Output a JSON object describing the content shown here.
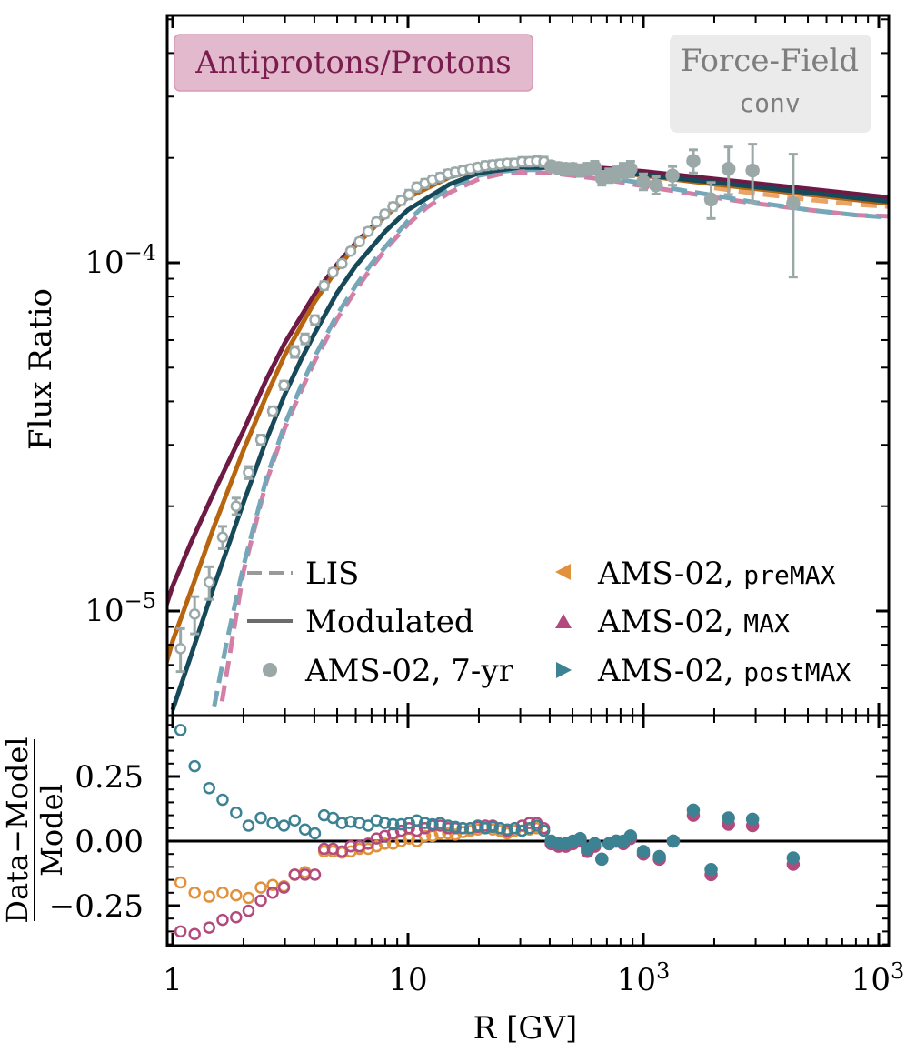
{
  "chart_data": [
    {
      "type": "line",
      "panel": "main",
      "ylabel": "Flux Ratio",
      "y_scale": "log",
      "x_scale": "log",
      "xlim": [
        0.9,
        1100
      ],
      "ylim": [
        5.2e-06,
        0.00045
      ],
      "ytick_labels": [
        "10⁻⁵",
        "10⁻⁴"
      ],
      "species_label": "Antiprotons/Protons",
      "model_label": "Force-Field",
      "model_sublabel": "conv",
      "legend_left": [
        {
          "key": "lis",
          "text": "LIS",
          "style": "dashed",
          "color": "#999999"
        },
        {
          "key": "mod",
          "text": "Modulated",
          "style": "solid",
          "color": "#6b6b6b"
        },
        {
          "key": "data7",
          "text": "AMS-02, 7-yr",
          "style": "circle",
          "color": "#9aa9a8"
        }
      ],
      "legend_right": [
        {
          "key": "pre",
          "text": "AMS-02, ",
          "code": "preMAX",
          "marker": "triangle-left",
          "color": "#e0913a"
        },
        {
          "key": "max",
          "text": "AMS-02, ",
          "code": "MAX",
          "marker": "triangle-up",
          "color": "#b34a7d"
        },
        {
          "key": "post",
          "text": "AMS-02, ",
          "code": "postMAX",
          "marker": "triangle-right",
          "color": "#3c8292"
        }
      ],
      "colors": {
        "lis_pink": "#d47fa6",
        "lis_teal": "#76a7b8",
        "lis_orange": "#e8a567",
        "mod_maroon": "#6e1a45",
        "mod_orange": "#b86510",
        "mod_teal": "#164a5a",
        "data": "#9aa9a8"
      },
      "series": [
        {
          "key": "lis_pink",
          "style": "dashed",
          "x": [
            1.62,
            2,
            2.5,
            3,
            3.5,
            4,
            5,
            6,
            7,
            8,
            10,
            12,
            15,
            20,
            25,
            30,
            40,
            50,
            70,
            100,
            150,
            200,
            300,
            500,
            800,
            1100
          ],
          "y": [
            5.5e-06,
            1.3e-05,
            2.35e-05,
            3.36e-05,
            4.26e-05,
            5.2e-05,
            6.9e-05,
            8.35e-05,
            9.7e-05,
            0.000109,
            0.000129,
            0.000144,
            0.000159,
            0.000174,
            0.00018,
            0.000182,
            0.000181,
            0.000178,
            0.000173,
            0.000166,
            0.000159,
            0.000154,
            0.000148,
            0.000142,
            0.000137,
            0.000136
          ]
        },
        {
          "key": "lis_teal",
          "style": "dashed",
          "x": [
            1.5,
            1.7,
            2,
            2.5,
            3,
            3.5,
            4,
            5,
            6,
            7,
            8,
            10,
            12,
            15,
            20,
            25,
            30,
            40,
            50,
            70,
            100,
            150,
            200,
            300,
            500,
            800,
            1100
          ],
          "y": [
            5.3e-06,
            8.2e-06,
            1.35e-05,
            2.4e-05,
            3.45e-05,
            4.4e-05,
            5.35e-05,
            7.1e-05,
            8.6e-05,
            9.95e-05,
            0.000111,
            0.000132,
            0.000148,
            0.000164,
            0.000178,
            0.000183,
            0.000185,
            0.000185,
            0.000182,
            0.000176,
            0.000169,
            0.000161,
            0.000156,
            0.000149,
            0.000142,
            0.000137,
            0.000135
          ]
        },
        {
          "key": "lis_orange",
          "style": "dashed",
          "x": [
            200,
            300,
            500,
            800,
            1100
          ],
          "y": [
            0.000164,
            0.000158,
            0.000152,
            0.000147,
            0.000145
          ]
        },
        {
          "key": "mod_maroon",
          "style": "solid",
          "x": [
            0.9,
            1,
            1.2,
            1.5,
            2,
            2.5,
            3,
            4,
            5,
            6,
            8,
            10,
            15,
            20,
            30,
            50,
            100,
            200,
            500,
            1100
          ],
          "y": [
            9.5e-06,
            1.18e-05,
            1.58e-05,
            2.2e-05,
            3.3e-05,
            4.62e-05,
            5.9e-05,
            8.1e-05,
            9.9e-05,
            0.000114,
            0.000138,
            0.000156,
            0.000178,
            0.000187,
            0.000191,
            0.00019,
            0.000183,
            0.000174,
            0.000163,
            0.000154
          ]
        },
        {
          "key": "mod_orange",
          "style": "solid",
          "x": [
            0.9,
            1,
            1.2,
            1.5,
            2,
            2.5,
            3,
            4,
            5,
            6,
            8,
            10,
            15,
            20,
            30,
            50,
            100,
            200,
            500,
            1100
          ],
          "y": [
            6.4e-06,
            8.2e-06,
            1.15e-05,
            1.75e-05,
            2.9e-05,
            4.15e-05,
            5.45e-05,
            7.7e-05,
            9.6e-05,
            0.000112,
            0.000136,
            0.000154,
            0.000176,
            0.000185,
            0.000189,
            0.000187,
            0.000178,
            0.000168,
            0.000157,
            0.000148
          ]
        },
        {
          "key": "mod_teal",
          "style": "solid",
          "x": [
            1,
            1.2,
            1.5,
            2,
            2.5,
            3,
            3.5,
            4,
            5,
            6,
            8,
            10,
            15,
            20,
            30,
            50,
            100,
            200,
            500,
            1100
          ],
          "y": [
            5.2e-06,
            7.5e-06,
            1.18e-05,
            2.05e-05,
            3.1e-05,
            4.2e-05,
            5.25e-05,
            6.25e-05,
            8.2e-05,
            9.8e-05,
            0.000123,
            0.000142,
            0.000168,
            0.000181,
            0.000188,
            0.000187,
            0.000179,
            0.00017,
            0.000159,
            0.00015
          ]
        }
      ],
      "data_points": {
        "x": [
          1.08,
          1.24,
          1.43,
          1.63,
          1.86,
          2.1,
          2.37,
          2.66,
          2.97,
          3.3,
          3.65,
          4.02,
          4.4,
          4.8,
          5.24,
          5.71,
          6.22,
          6.77,
          7.35,
          7.97,
          8.64,
          9.35,
          10.1,
          10.9,
          11.8,
          12.7,
          13.7,
          14.8,
          15.9,
          17.1,
          18.4,
          19.8,
          21.3,
          22.9,
          24.6,
          26.4,
          28.4,
          30.5,
          32.8,
          35.2,
          37.8,
          40.6,
          43.6,
          46.8,
          50.2,
          53.9,
          57.8,
          62.1,
          66.6,
          71.5,
          76.7,
          82.2,
          88.2,
          100,
          113,
          133,
          163,
          194,
          230,
          291,
          433
        ],
        "y": [
          7.8e-06,
          9.8e-06,
          1.21e-05,
          1.63e-05,
          2e-05,
          2.5e-05,
          3.1e-05,
          3.75e-05,
          4.45e-05,
          5.55e-05,
          6.05e-05,
          6.85e-05,
          8.6e-05,
          9.4e-05,
          9.95e-05,
          0.000108,
          0.000115,
          0.000123,
          0.000131,
          0.000138,
          0.000145,
          0.000151,
          0.000157,
          0.000165,
          0.000169,
          0.000173,
          0.000176,
          0.00018,
          0.000182,
          0.000184,
          0.000186,
          0.000188,
          0.00019,
          0.000191,
          0.000192,
          0.000193,
          0.000193,
          0.000195,
          0.000195,
          0.000196,
          0.000195,
          0.000189,
          0.000187,
          0.000186,
          0.000186,
          0.000184,
          0.000186,
          0.000188,
          0.000175,
          0.000178,
          0.00018,
          0.000184,
          0.000186,
          0.000171,
          0.000167,
          0.000178,
          0.000196,
          0.000152,
          0.000186,
          0.000184,
          0.000148
        ],
        "err": [
          1.1e-06,
          1.2e-06,
          1.3e-06,
          1.2e-06,
          1.1e-06,
          1e-06,
          1e-06,
          1.1e-06,
          1.2e-06,
          2e-06,
          2e-06,
          2e-06,
          2.2e-06,
          2e-06,
          2e-06,
          2e-06,
          2.2e-06,
          2.5e-06,
          3e-06,
          3e-06,
          3.5e-06,
          4e-06,
          4.5e-06,
          4.5e-06,
          4.5e-06,
          4.5e-06,
          4.5e-06,
          4.5e-06,
          4.5e-06,
          4.5e-06,
          4.5e-06,
          4.5e-06,
          5e-06,
          5e-06,
          5e-06,
          5e-06,
          5.5e-06,
          5.5e-06,
          5.5e-06,
          6e-06,
          6e-06,
          6e-06,
          6.5e-06,
          6.5e-06,
          6.5e-06,
          7e-06,
          7e-06,
          7.5e-06,
          8e-06,
          8e-06,
          8.5e-06,
          9e-06,
          9.5e-06,
          9e-06,
          9.5e-06,
          1.1e-05,
          1.5e-05,
          1.8e-05,
          2.9e-05,
          3.5e-05,
          5.7e-05
        ]
      }
    },
    {
      "type": "scatter",
      "panel": "residual",
      "xlabel": "R [GV]",
      "ylabel_num": "Data−Model",
      "ylabel_den": "Model",
      "x_scale": "log",
      "xlim": [
        0.9,
        1100
      ],
      "ylim": [
        -0.41,
        0.48
      ],
      "yticks": [
        -0.25,
        0,
        0.25
      ],
      "ytick_labels": [
        "−0.25",
        "0.00",
        "0.25"
      ],
      "xtick_values": [
        1,
        10,
        100,
        1000
      ],
      "xtick_labels": [
        "1",
        "10",
        "100",
        "10³"
      ],
      "series": [
        {
          "key": "pre",
          "color": "#e0913a",
          "filled": false,
          "x": [
            1.08,
            1.24,
            1.43,
            1.63,
            1.86,
            2.1,
            2.37,
            2.66,
            2.97,
            3.3,
            3.65,
            4.4,
            4.8,
            5.24,
            5.71,
            6.22,
            6.77,
            7.35,
            7.97,
            8.64,
            9.35,
            10.1,
            10.9,
            11.8,
            12.7,
            13.7,
            14.8,
            15.9,
            17.1,
            18.4,
            19.8,
            21.3,
            22.9,
            24.6,
            26.4,
            28.4,
            30.5,
            32.8,
            35.2,
            37.8
          ],
          "y": [
            -0.16,
            -0.2,
            -0.215,
            -0.2,
            -0.21,
            -0.22,
            -0.18,
            -0.17,
            -0.175,
            -0.13,
            -0.12,
            -0.04,
            -0.04,
            -0.045,
            -0.04,
            -0.03,
            -0.03,
            -0.02,
            -0.01,
            -0.01,
            0,
            0.01,
            0,
            0.02,
            0.02,
            0.03,
            0.03,
            0.025,
            0.035,
            0.04,
            0.045,
            0.05,
            0.045,
            0.04,
            0.03,
            0.04,
            0.04,
            0.045,
            0.05,
            0.04
          ]
        },
        {
          "key": "max",
          "color": "#b34a7d",
          "filled": false,
          "x": [
            1.08,
            1.24,
            1.43,
            1.63,
            1.86,
            2.1,
            2.37,
            2.66,
            2.97,
            3.3,
            3.65,
            4.02,
            4.4,
            4.8,
            5.24,
            5.71,
            6.22,
            6.77,
            7.35,
            7.97,
            8.64,
            9.35,
            10.1,
            10.9,
            11.8,
            12.7,
            13.7,
            14.8,
            15.9,
            17.1,
            18.4,
            19.8,
            21.3,
            22.9,
            24.6,
            26.4,
            28.4,
            30.5,
            32.8,
            35.2,
            37.8
          ],
          "y": [
            -0.35,
            -0.36,
            -0.335,
            -0.305,
            -0.295,
            -0.27,
            -0.23,
            -0.2,
            -0.18,
            -0.13,
            -0.13,
            -0.13,
            -0.03,
            -0.03,
            -0.04,
            -0.02,
            -0.02,
            -0.01,
            0.01,
            0.02,
            0.03,
            0.04,
            0.05,
            0.04,
            0.05,
            0.06,
            0.06,
            0.05,
            0.05,
            0.05,
            0.05,
            0.055,
            0.06,
            0.06,
            0.05,
            0.04,
            0.05,
            0.06,
            0.07,
            0.07,
            0.05
          ]
        },
        {
          "key": "post",
          "color": "#3c8292",
          "filled": false,
          "x": [
            1.08,
            1.24,
            1.43,
            1.63,
            1.86,
            2.1,
            2.37,
            2.66,
            2.97,
            3.3,
            3.65,
            4.02,
            4.4,
            4.8,
            5.24,
            5.71,
            6.22,
            6.77,
            7.35,
            7.97,
            8.64,
            9.35,
            10.1,
            10.9,
            11.8,
            12.7,
            13.7,
            14.8,
            15.9,
            17.1,
            18.4,
            19.8,
            21.3,
            22.9,
            24.6,
            26.4,
            28.4,
            30.5,
            32.8,
            35.2,
            37.8
          ],
          "y": [
            0.43,
            0.29,
            0.205,
            0.16,
            0.11,
            0.06,
            0.09,
            0.07,
            0.06,
            0.08,
            0.045,
            0.03,
            0.1,
            0.09,
            0.07,
            0.075,
            0.07,
            0.06,
            0.08,
            0.07,
            0.065,
            0.065,
            0.07,
            0.08,
            0.07,
            0.065,
            0.07,
            0.06,
            0.055,
            0.05,
            0.05,
            0.06,
            0.05,
            0.055,
            0.05,
            0.045,
            0.05,
            0.04,
            0.05,
            0.06,
            0.04
          ]
        },
        {
          "key": "max_hi",
          "color": "#b34a7d",
          "filled": true,
          "x": [
            40.6,
            43.6,
            46.8,
            50.2,
            53.9,
            57.8,
            62.1,
            66.6,
            71.5,
            76.7,
            82.2,
            88.2,
            100,
            117,
            134,
            163,
            194,
            230,
            291,
            433
          ],
          "y": [
            -0.01,
            -0.02,
            -0.02,
            -0.01,
            0,
            -0.04,
            -0.02,
            -0.07,
            -0.01,
            0,
            -0.01,
            0.01,
            -0.05,
            -0.07,
            0,
            0.1,
            -0.13,
            0.065,
            0.06,
            -0.09
          ]
        },
        {
          "key": "post_hi",
          "color": "#3c8292",
          "filled": true,
          "x": [
            40.6,
            43.6,
            46.8,
            50.2,
            53.9,
            57.8,
            62.1,
            66.6,
            71.5,
            76.7,
            82.2,
            88.2,
            100,
            117,
            134,
            163,
            194,
            230,
            291,
            433
          ],
          "y": [
            0,
            -0.01,
            -0.01,
            0,
            0.01,
            -0.03,
            -0.01,
            -0.07,
            -0.01,
            0,
            0,
            0.02,
            -0.04,
            -0.06,
            0,
            0.12,
            -0.11,
            0.09,
            0.085,
            -0.065
          ]
        }
      ]
    }
  ]
}
